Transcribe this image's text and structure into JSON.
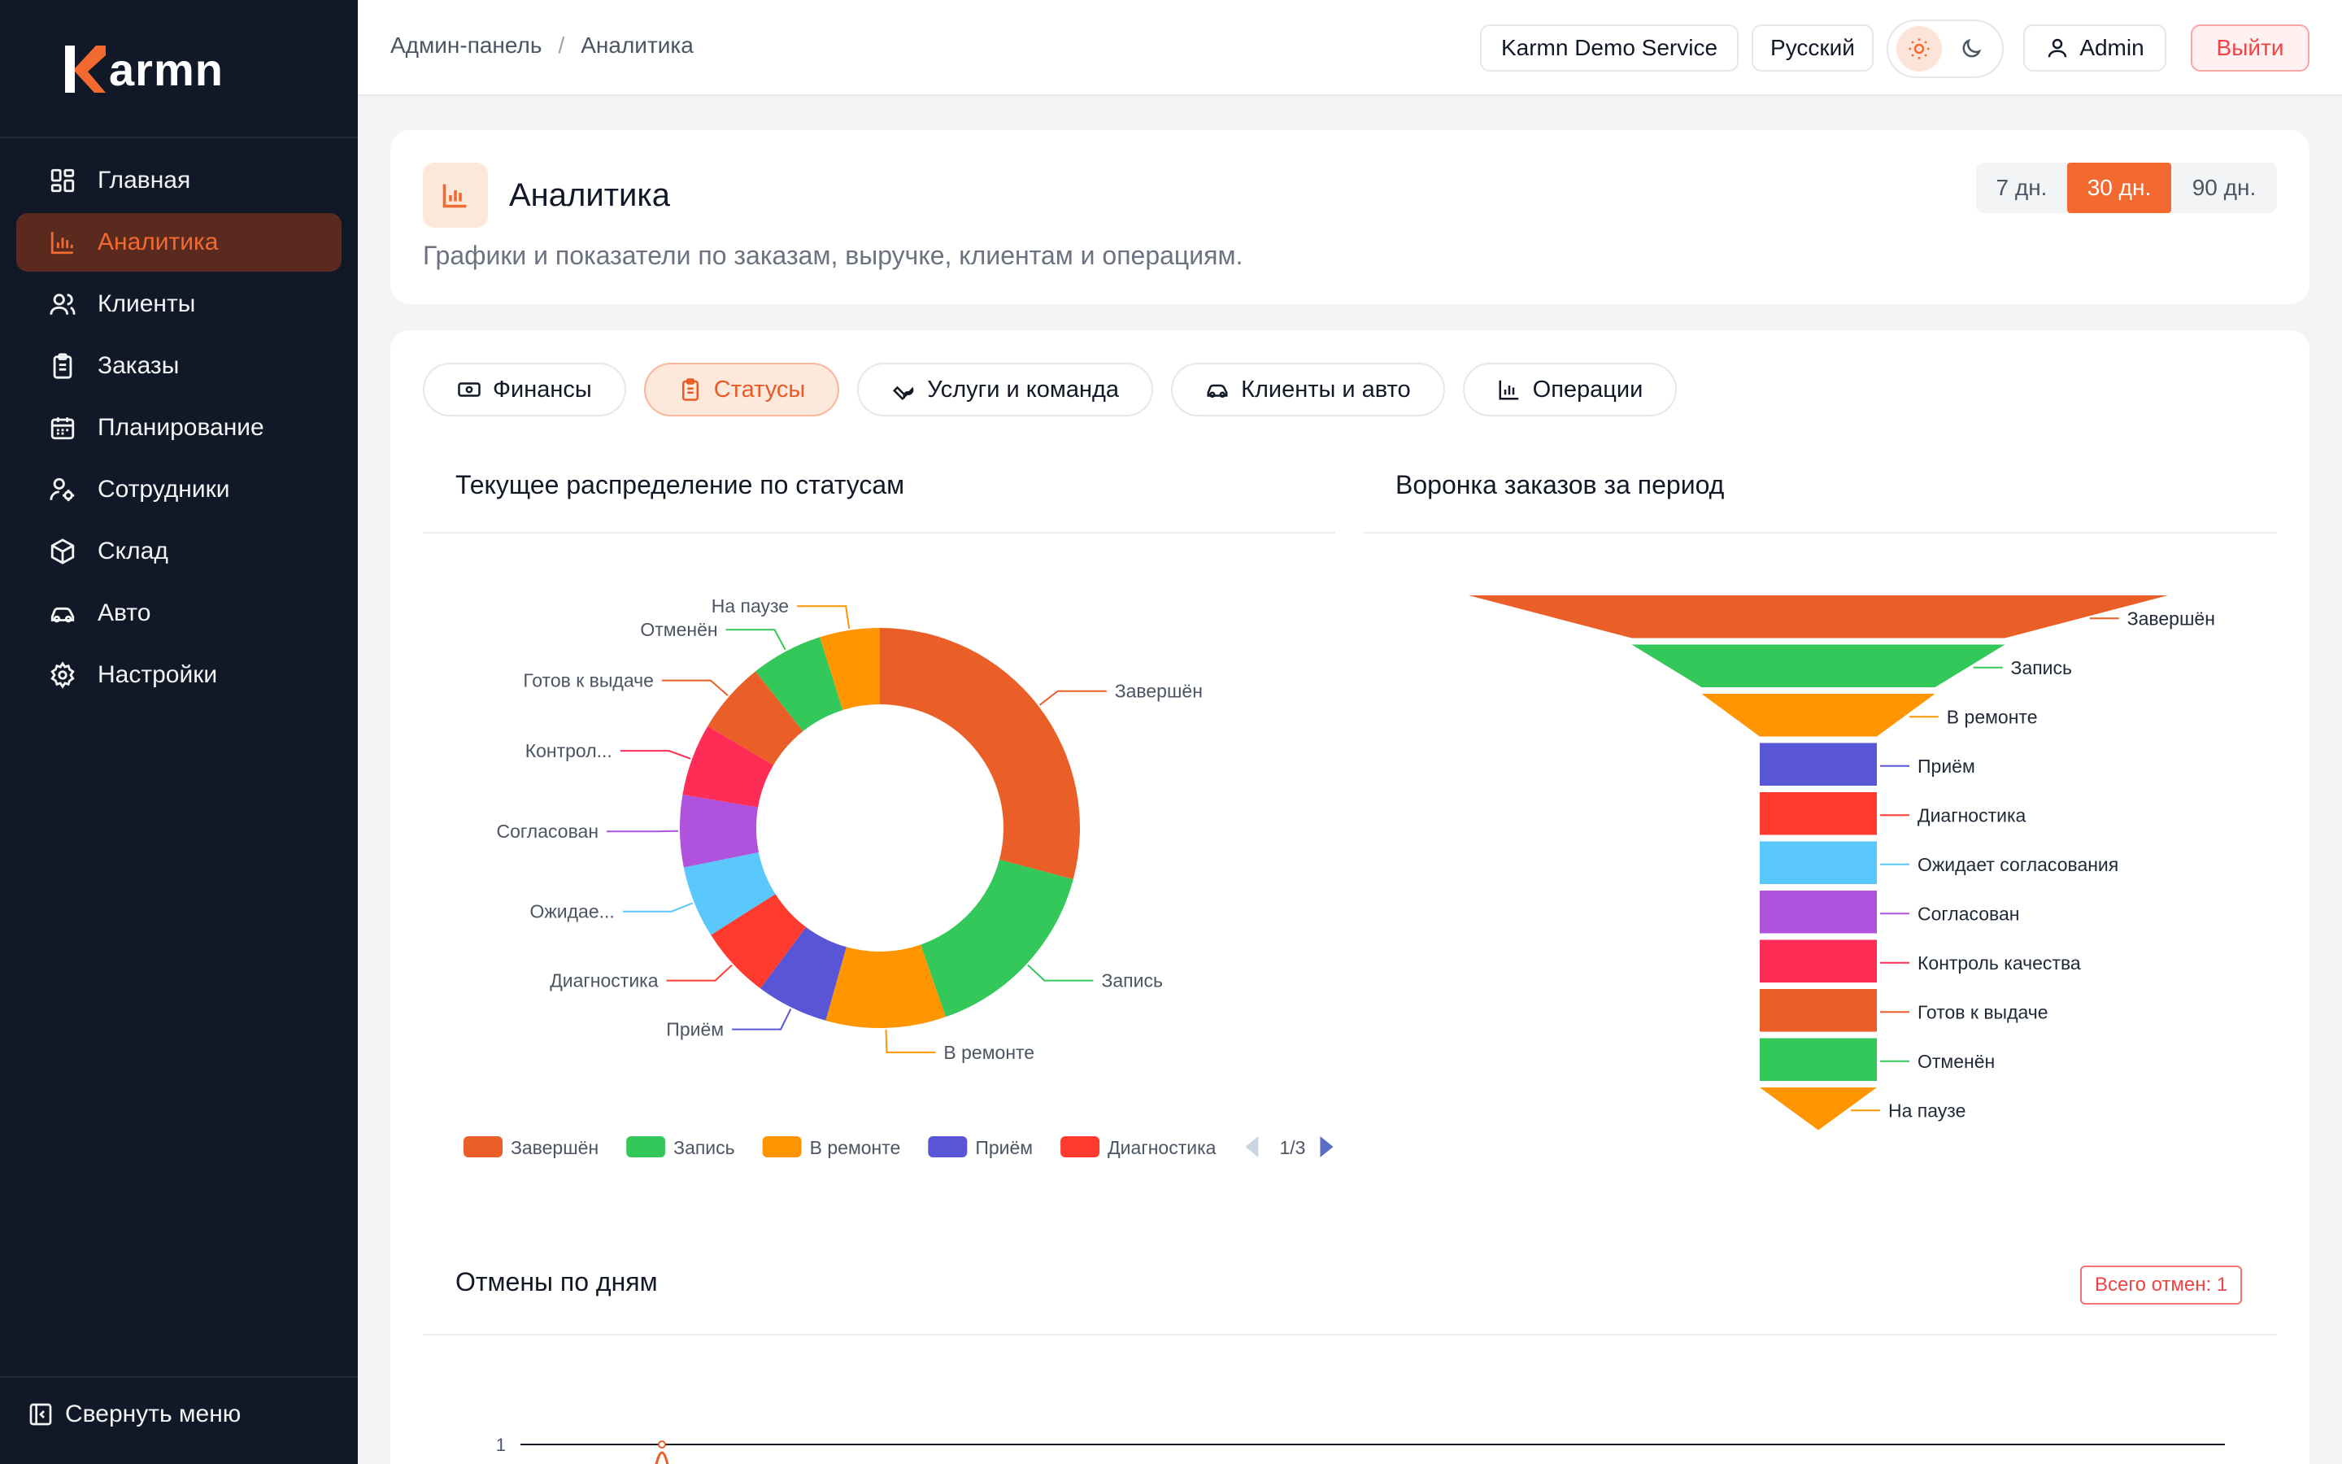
{
  "brand": {
    "name": "armn",
    "accent": "#f26a2f"
  },
  "sidebar": {
    "items": [
      {
        "label": "Главная",
        "icon": "grid-icon",
        "active": false
      },
      {
        "label": "Аналитика",
        "icon": "bar-chart-icon",
        "active": true
      },
      {
        "label": "Клиенты",
        "icon": "users-icon",
        "active": false
      },
      {
        "label": "Заказы",
        "icon": "clipboard-icon",
        "active": false
      },
      {
        "label": "Планирование",
        "icon": "calendar-icon",
        "active": false
      },
      {
        "label": "Сотрудники",
        "icon": "user-gear-icon",
        "active": false
      },
      {
        "label": "Склад",
        "icon": "box-icon",
        "active": false
      },
      {
        "label": "Авто",
        "icon": "car-icon",
        "active": false
      },
      {
        "label": "Настройки",
        "icon": "gear-icon",
        "active": false
      }
    ],
    "collapse_label": "Свернуть меню"
  },
  "topbar": {
    "breadcrumb": [
      "Админ-панель",
      "Аналитика"
    ],
    "breadcrumb_sep": "/",
    "service": "Karmn Demo Service",
    "language": "Русский",
    "user": "Admin",
    "logout": "Выйти"
  },
  "header": {
    "title": "Аналитика",
    "subtitle": "Графики и показатели по заказам, выручке, клиентам и операциям.",
    "periods": [
      "7 дн.",
      "30 дн.",
      "90 дн."
    ],
    "active_period": "30 дн."
  },
  "tabs": [
    {
      "label": "Финансы",
      "icon": "cash-icon",
      "active": false
    },
    {
      "label": "Статусы",
      "icon": "clipboard-icon",
      "active": true
    },
    {
      "label": "Услуги и команда",
      "icon": "wrench-icon",
      "active": false
    },
    {
      "label": "Клиенты и авто",
      "icon": "car-icon",
      "active": false
    },
    {
      "label": "Операции",
      "icon": "bar-chart-icon",
      "active": false
    }
  ],
  "sections": {
    "status_title": "Текущее распределение по статусам",
    "funnel_title": "Воронка заказов за период",
    "cancel_title": "Отмены по дням",
    "cancel_badge": "Всего отмен: 1"
  },
  "chart_data": [
    {
      "type": "pie",
      "subtype": "donut",
      "title": "Текущее распределение по статусам",
      "slices": [
        {
          "label": "Завершён",
          "value": 30,
          "color": "#ea5f28"
        },
        {
          "label": "Запись",
          "value": 16,
          "color": "#34c759"
        },
        {
          "label": "В ремонте",
          "value": 10,
          "color": "#ff9500"
        },
        {
          "label": "Приём",
          "value": 6,
          "color": "#5856d6"
        },
        {
          "label": "Диагностика",
          "value": 6,
          "color": "#ff3b30"
        },
        {
          "label": "Ожидае...",
          "value": 6,
          "color": "#5ac8fa"
        },
        {
          "label": "Согласован",
          "value": 6,
          "color": "#af52de"
        },
        {
          "label": "Контрол...",
          "value": 6,
          "color": "#ff2d55"
        },
        {
          "label": "Готов к выдаче",
          "value": 6,
          "color": "#ea5f28"
        },
        {
          "label": "Отменён",
          "value": 6,
          "color": "#34c759"
        },
        {
          "label": "На паузе",
          "value": 5,
          "color": "#ff9500"
        }
      ],
      "legend": {
        "position": "bottom",
        "visible_items": [
          "Завершён",
          "Запись",
          "В ремонте",
          "Приём",
          "Диагностика"
        ],
        "page": "1/3"
      }
    },
    {
      "type": "bar",
      "subtype": "funnel",
      "title": "Воронка заказов за период",
      "categories": [
        "Завершён",
        "Запись",
        "В ремонте",
        "Приём",
        "Диагностика",
        "Ожидает согласования",
        "Согласован",
        "Контроль качества",
        "Готов к выдаче",
        "Отменён",
        "На паузе"
      ],
      "values": [
        30,
        16,
        10,
        5,
        5,
        5,
        5,
        5,
        5,
        5,
        5
      ],
      "colors": [
        "#ea5f28",
        "#34c759",
        "#ff9500",
        "#5856d6",
        "#ff3b30",
        "#5ac8fa",
        "#af52de",
        "#ff2d55",
        "#ea5f28",
        "#34c759",
        "#ff9500"
      ]
    },
    {
      "type": "line",
      "title": "Отмены по дням",
      "y_ticks": [
        "1"
      ],
      "series": [
        {
          "values": [
            0,
            1,
            0
          ]
        }
      ],
      "color": "#ea5f28"
    }
  ]
}
